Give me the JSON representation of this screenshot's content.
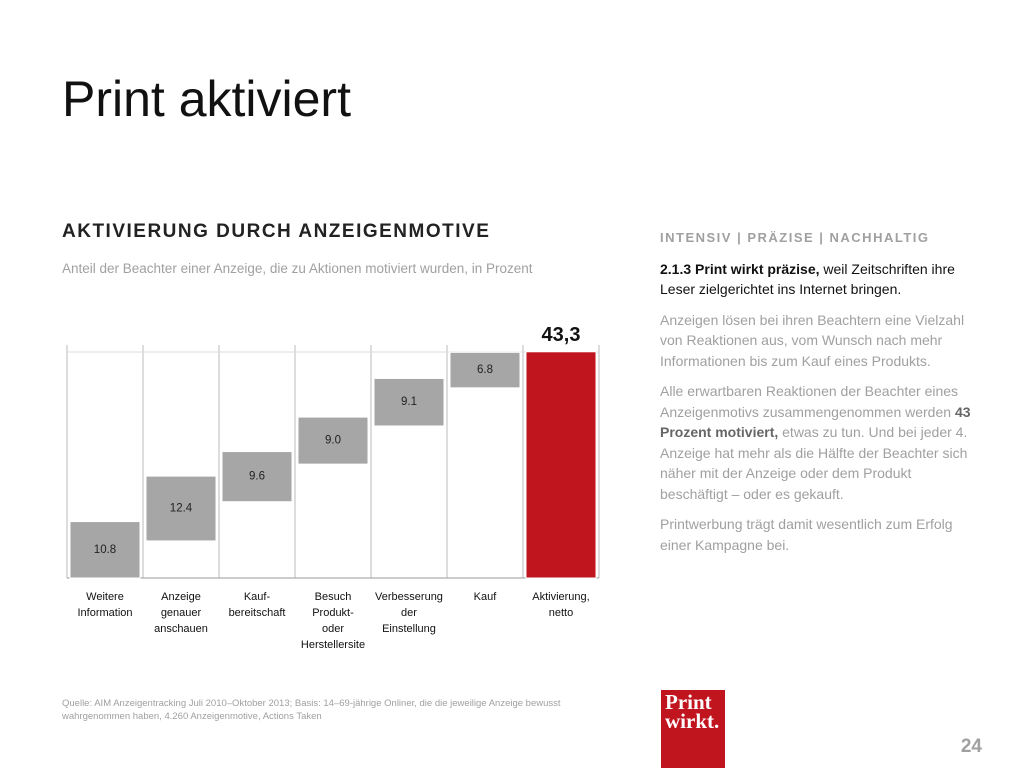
{
  "page": {
    "title": "Print aktiviert",
    "sidebar": {
      "kicker": "INTENSIV | PRÄZISE | NACHHALTIG",
      "lead_bold": "2.1.3 Print wirkt präzise,",
      "lead": " weil Zeitschriften ihre Leser zielgerichtet ins Internet bringen.",
      "p2": "Anzeigen lösen bei ihren Beachtern eine Vielzahl von Reaktionen aus, vom Wunsch nach mehr Informationen bis zum Kauf eines Produkts.",
      "p3a": "Alle erwartbaren Reaktionen der Beachter eines Anzeigenmotivs zusammengenommen werden ",
      "p3b": "43 Prozent motiviert,",
      "p3c": " etwas zu tun. Und bei jeder 4. Anzeige hat mehr als die Hälfte der Beachter sich näher mit der Anzeige oder dem Produkt beschäftigt – oder es gekauft.",
      "p4": "Printwerbung trägt damit wesentlich zum Erfolg einer Kampagne bei."
    },
    "source": "Quelle: AIM Anzeigentracking Juli 2010–Oktober 2013; Basis: 14–69-jährige Onliner, die die jeweilige Anzeige bewusst wahrgenommen haben, 4.260 Anzeigenmotive, Actions Taken",
    "logo": {
      "line1": "Print",
      "line2": "wirkt."
    },
    "page_number": "24"
  },
  "chart_data": {
    "type": "waterfall",
    "title": "AKTIVIERUNG DURCH ANZEIGENMOTIVE",
    "subtitle": "Anteil der Beachter einer Anzeige, die zu Aktionen motiviert wurden, in Prozent",
    "categories": [
      "Weitere\nInformation",
      "Anzeige\ngenauer\nanschauen",
      "Kauf-\nbereitschaft",
      "Besuch\nProdukt-\noder\nHerstellersite",
      "Verbesserung\nder\nEinstellung",
      "Kauf",
      "Aktivierung,\nnetto"
    ],
    "values": [
      10.8,
      12.4,
      9.6,
      9.0,
      9.1,
      6.8,
      43.3
    ],
    "value_labels": [
      "10.8",
      "12.4",
      "9.6",
      "9.0",
      "9.1",
      "6.8",
      "43,3"
    ],
    "bases": [
      0,
      7.1,
      14.6,
      21.8,
      29.1,
      36.4,
      0
    ],
    "colors": [
      "#a6a6a6",
      "#a6a6a6",
      "#a6a6a6",
      "#a6a6a6",
      "#a6a6a6",
      "#a6a6a6",
      "#c0141e"
    ],
    "ylim": [
      0,
      44.6
    ]
  }
}
